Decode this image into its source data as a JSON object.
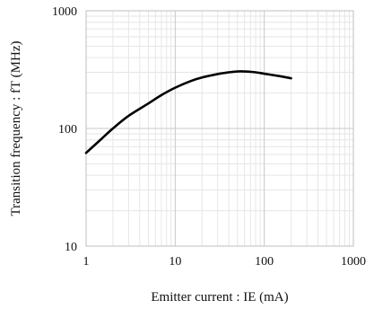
{
  "chart_data": {
    "type": "line",
    "xlabel": "Emitter current : IE (mA)",
    "ylabel": "Transition frequency : fT (MHz)",
    "xscale": "log",
    "yscale": "log",
    "xlim": [
      1,
      1000
    ],
    "ylim": [
      10,
      1000
    ],
    "x_ticks": [
      1,
      10,
      100,
      1000
    ],
    "x_tick_labels": [
      "1",
      "10",
      "100",
      "1000"
    ],
    "y_ticks": [
      10,
      100,
      1000
    ],
    "y_tick_labels": [
      "10",
      "100",
      "1000"
    ],
    "grid": true,
    "series": [
      {
        "color": "#000000",
        "x": [
          1,
          1.5,
          2,
          3,
          5,
          7,
          10,
          15,
          20,
          30,
          40,
          50,
          60,
          70,
          80,
          100,
          150,
          200
        ],
        "y": [
          62,
          82,
          100,
          128,
          163,
          192,
          222,
          253,
          271,
          290,
          300,
          305,
          305,
          303,
          300,
          292,
          278,
          267
        ]
      }
    ]
  }
}
